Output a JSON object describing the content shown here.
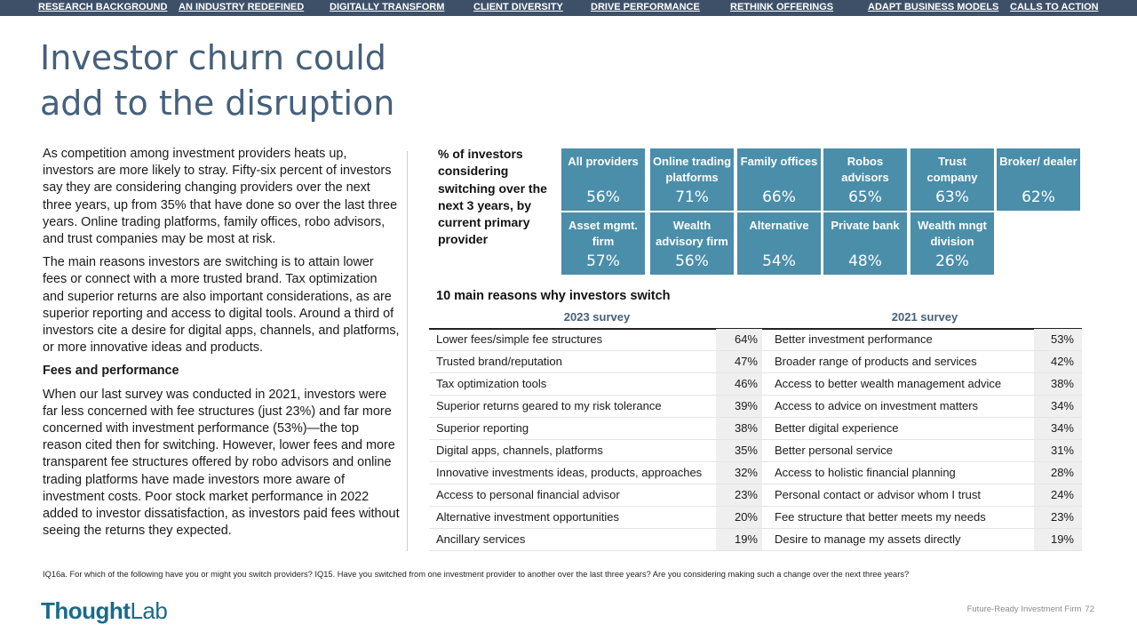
{
  "nav": {
    "items": [
      "RESEARCH BACKGROUND",
      "AN INDUSTRY REDEFINED",
      "DIGITALLY TRANSFORM",
      "CLIENT DIVERSITY",
      "DRIVE PERFORMANCE",
      "RETHINK OFFERINGS",
      "ADAPT BUSINESS MODELS",
      "CALLS TO ACTION"
    ]
  },
  "title": {
    "line1": "Investor churn could",
    "line2": "add to the disruption"
  },
  "body": {
    "p1": "As competition among investment providers heats up, investors are more likely to stray. Fifty-six percent of investors say they are considering changing providers over the next three years, up from 35% that have done so over the last three years. Online trading platforms, family offices, robo advisors, and trust companies may be most at risk.",
    "p2": "The main reasons investors are switching is to attain lower fees or connect with a more trusted brand. Tax optimization and superior returns are also important considerations, as are superior reporting and access to digital tools. Around a third of investors cite a desire for digital apps, channels, and platforms, or more innovative ideas and products.",
    "subhead": "Fees and performance",
    "p3": "When our last survey was conducted in 2021, investors were far less concerned with fee structures (just 23%) and far more concerned with investment performance (53%)—the top reason cited then for switching. However, lower fees and more transparent fee structures offered by robo advisors and online trading platforms have made investors more aware of investment costs. Poor stock market performance in 2022 added to investor dissatisfaction, as investors paid fees without seeing the returns they expected."
  },
  "providers": {
    "label": "% of investors considering switching over the next 3 years, by current primary provider",
    "tiles": [
      {
        "label": "All providers",
        "value": "56%"
      },
      {
        "label": "Online trading platforms",
        "value": "71%"
      },
      {
        "label": "Family offices",
        "value": "66%"
      },
      {
        "label": "Robos advisors",
        "value": "65%"
      },
      {
        "label": "Trust company",
        "value": "63%"
      },
      {
        "label": "Broker/ dealer",
        "value": "62%"
      },
      {
        "label": "Asset mgmt. firm",
        "value": "57%"
      },
      {
        "label": "Wealth advisory firm",
        "value": "56%"
      },
      {
        "label": "Alternative",
        "value": "54%"
      },
      {
        "label": "Private bank",
        "value": "48%"
      },
      {
        "label": "Wealth mngt division",
        "value": "26%"
      }
    ]
  },
  "reasons": {
    "title": "10 main reasons why investors switch",
    "head2023": "2023 survey",
    "head2021": "2021 survey",
    "rows": [
      {
        "r2023": "Lower fees/simple fee structures",
        "p2023": "64%",
        "r2021": "Better investment performance",
        "p2021": "53%"
      },
      {
        "r2023": "Trusted brand/reputation",
        "p2023": "47%",
        "r2021": "Broader range of products and services",
        "p2021": "42%"
      },
      {
        "r2023": "Tax optimization tools",
        "p2023": "46%",
        "r2021": "Access to better wealth management advice",
        "p2021": "38%"
      },
      {
        "r2023": "Superior returns geared to my risk tolerance",
        "p2023": "39%",
        "r2021": "Access to advice on investment matters",
        "p2021": "34%"
      },
      {
        "r2023": "Superior reporting",
        "p2023": "38%",
        "r2021": "Better digital experience",
        "p2021": "34%"
      },
      {
        "r2023": "Digital apps, channels, platforms",
        "p2023": "35%",
        "r2021": "Better personal service",
        "p2021": "31%"
      },
      {
        "r2023": "Innovative investments ideas, products, approaches",
        "p2023": "32%",
        "r2021": "Access to holistic financial planning",
        "p2021": "28%"
      },
      {
        "r2023": "Access to personal financial advisor",
        "p2023": "23%",
        "r2021": "Personal contact or advisor whom I trust",
        "p2021": "24%"
      },
      {
        "r2023": "Alternative investment opportunities",
        "p2023": "20%",
        "r2021": "Fee structure that better meets my needs",
        "p2021": "23%"
      },
      {
        "r2023": "Ancillary services",
        "p2023": "19%",
        "r2021": "Desire to manage my assets directly",
        "p2021": "19%"
      }
    ]
  },
  "footnote": "IQ16a. For which of the following have you or might you switch providers? IQ15. Have you switched from one investment provider to another over the last three years? Are you considering making such a change over the next three years?",
  "logo": {
    "part1": "Thought",
    "part2": "Lab"
  },
  "footer": {
    "title": "Future-Ready Investment Firm",
    "page": "72"
  }
}
